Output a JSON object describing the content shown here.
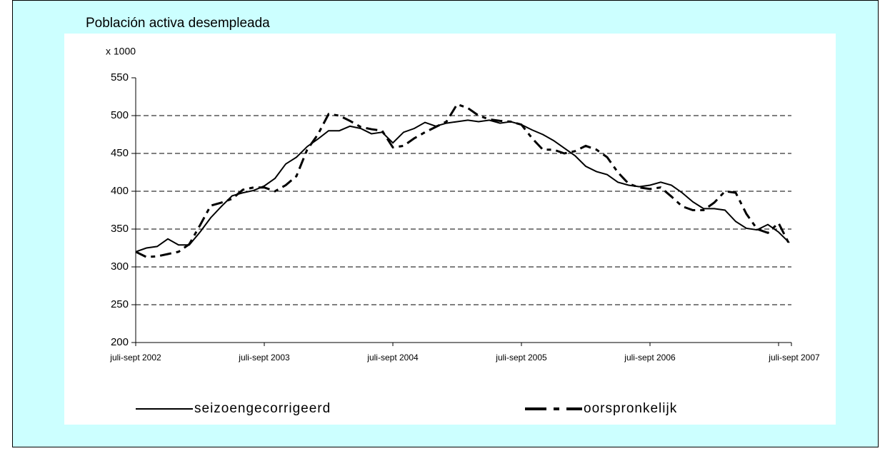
{
  "chart_data": {
    "type": "line",
    "title": "Población activa desempleada",
    "unit_label": "x 1000",
    "categories": [
      "juli-sept 2002",
      null,
      null,
      null,
      null,
      null,
      null,
      null,
      null,
      null,
      null,
      null,
      "juli-sept 2003",
      null,
      null,
      null,
      null,
      null,
      null,
      null,
      null,
      null,
      null,
      null,
      "juli-sept 2004",
      null,
      null,
      null,
      null,
      null,
      null,
      null,
      null,
      null,
      null,
      null,
      "juli-sept 2005",
      null,
      null,
      null,
      null,
      null,
      null,
      null,
      null,
      null,
      null,
      null,
      "juli-sept 2006",
      null,
      null,
      null,
      null,
      null,
      null,
      null,
      null,
      null,
      null,
      null,
      "juli-sept 2007",
      null
    ],
    "series": [
      {
        "name": "seizoengecorrigeerd",
        "color": "#000000",
        "style": "solid",
        "values": [
          320,
          325,
          327,
          337,
          329,
          329,
          346,
          365,
          380,
          394,
          398,
          401,
          407,
          417,
          436,
          445,
          459,
          469,
          480,
          480,
          486,
          483,
          476,
          478,
          464,
          478,
          483,
          491,
          486,
          490,
          492,
          494,
          492,
          494,
          490,
          492,
          488,
          481,
          475,
          467,
          457,
          447,
          433,
          426,
          422,
          412,
          408,
          406,
          408,
          412,
          408,
          398,
          386,
          377,
          377,
          375,
          360,
          351,
          349,
          356,
          346,
          332
        ]
      },
      {
        "name": "oorspronkelijk",
        "color": "#000000",
        "style": "dashed",
        "values": [
          320,
          313,
          314,
          317,
          320,
          330,
          355,
          381,
          385,
          390,
          402,
          405,
          405,
          400,
          408,
          420,
          455,
          475,
          502,
          500,
          493,
          485,
          482,
          480,
          458,
          460,
          470,
          478,
          485,
          492,
          515,
          510,
          500,
          495,
          493,
          492,
          488,
          470,
          455,
          455,
          450,
          453,
          460,
          455,
          445,
          425,
          410,
          405,
          403,
          405,
          393,
          380,
          375,
          375,
          385,
          400,
          398,
          370,
          350,
          345,
          358,
          330
        ]
      }
    ],
    "ylim": [
      200,
      550
    ],
    "yticks": [
      200,
      250,
      300,
      350,
      400,
      450,
      500,
      550
    ],
    "grid": true
  }
}
